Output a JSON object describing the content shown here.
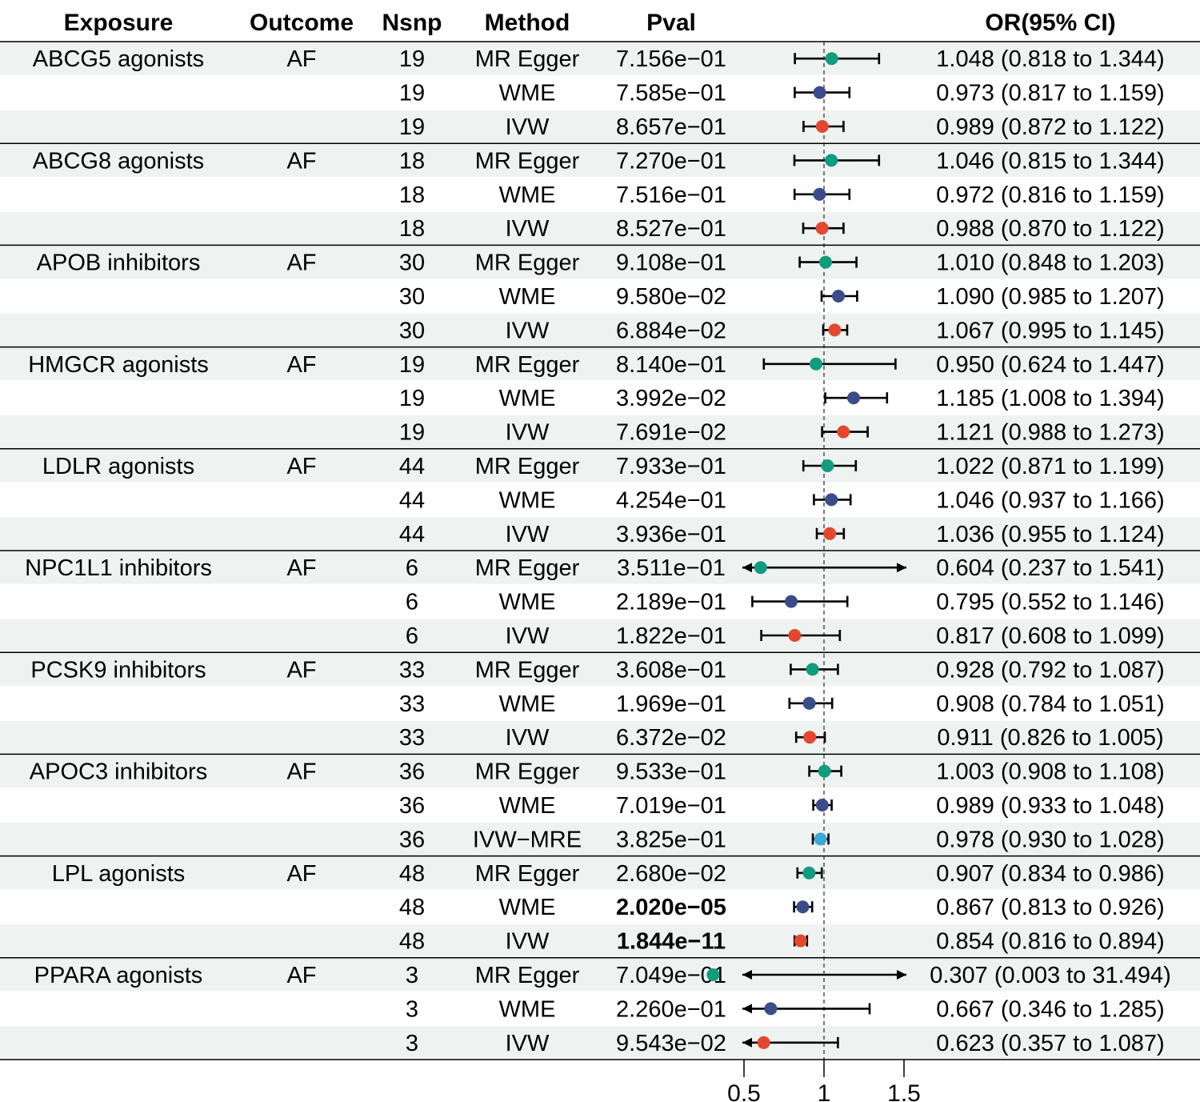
{
  "chart_data": {
    "type": "forest",
    "headers": {
      "exposure": "Exposure",
      "outcome": "Outcome",
      "nsnp": "Nsnp",
      "method": "Method",
      "pval": "Pval",
      "or": "OR(95% CI)"
    },
    "reference_line": 1,
    "x_axis": {
      "ticks": [
        0.5,
        1,
        1.5
      ],
      "tick_labels": [
        "0.5",
        "1",
        "1.5"
      ],
      "range": [
        0.5,
        1.5
      ]
    },
    "method_colors": {
      "MR Egger": "#119C7E",
      "WME": "#3A4C8A",
      "IVW": "#E4472F",
      "IVW−MRE": "#3FA9D6"
    },
    "groups": [
      {
        "exposure": "ABCG5 agonists",
        "outcome": "AF",
        "rows": [
          {
            "nsnp": "19",
            "method": "MR Egger",
            "pval": "7.156e−01",
            "bold": false,
            "or": 1.048,
            "lo": 0.818,
            "hi": 1.344,
            "or_text": "1.048 (0.818 to 1.344)"
          },
          {
            "nsnp": "19",
            "method": "WME",
            "pval": "7.585e−01",
            "bold": false,
            "or": 0.973,
            "lo": 0.817,
            "hi": 1.159,
            "or_text": "0.973 (0.817 to 1.159)"
          },
          {
            "nsnp": "19",
            "method": "IVW",
            "pval": "8.657e−01",
            "bold": false,
            "or": 0.989,
            "lo": 0.872,
            "hi": 1.122,
            "or_text": "0.989 (0.872 to 1.122)"
          }
        ]
      },
      {
        "exposure": "ABCG8 agonists",
        "outcome": "AF",
        "rows": [
          {
            "nsnp": "18",
            "method": "MR Egger",
            "pval": "7.270e−01",
            "bold": false,
            "or": 1.046,
            "lo": 0.815,
            "hi": 1.344,
            "or_text": "1.046 (0.815 to 1.344)"
          },
          {
            "nsnp": "18",
            "method": "WME",
            "pval": "7.516e−01",
            "bold": false,
            "or": 0.972,
            "lo": 0.816,
            "hi": 1.159,
            "or_text": "0.972 (0.816 to 1.159)"
          },
          {
            "nsnp": "18",
            "method": "IVW",
            "pval": "8.527e−01",
            "bold": false,
            "or": 0.988,
            "lo": 0.87,
            "hi": 1.122,
            "or_text": "0.988 (0.870 to 1.122)"
          }
        ]
      },
      {
        "exposure": "APOB inhibitors",
        "outcome": "AF",
        "rows": [
          {
            "nsnp": "30",
            "method": "MR Egger",
            "pval": "9.108e−01",
            "bold": false,
            "or": 1.01,
            "lo": 0.848,
            "hi": 1.203,
            "or_text": "1.010 (0.848 to 1.203)"
          },
          {
            "nsnp": "30",
            "method": "WME",
            "pval": "9.580e−02",
            "bold": false,
            "or": 1.09,
            "lo": 0.985,
            "hi": 1.207,
            "or_text": "1.090 (0.985 to 1.207)"
          },
          {
            "nsnp": "30",
            "method": "IVW",
            "pval": "6.884e−02",
            "bold": false,
            "or": 1.067,
            "lo": 0.995,
            "hi": 1.145,
            "or_text": "1.067 (0.995 to 1.145)"
          }
        ]
      },
      {
        "exposure": "HMGCR agonists",
        "outcome": "AF",
        "rows": [
          {
            "nsnp": "19",
            "method": "MR Egger",
            "pval": "8.140e−01",
            "bold": false,
            "or": 0.95,
            "lo": 0.624,
            "hi": 1.447,
            "or_text": "0.950 (0.624 to 1.447)"
          },
          {
            "nsnp": "19",
            "method": "WME",
            "pval": "3.992e−02",
            "bold": false,
            "or": 1.185,
            "lo": 1.008,
            "hi": 1.394,
            "or_text": "1.185 (1.008 to 1.394)"
          },
          {
            "nsnp": "19",
            "method": "IVW",
            "pval": "7.691e−02",
            "bold": false,
            "or": 1.121,
            "lo": 0.988,
            "hi": 1.273,
            "or_text": "1.121 (0.988 to 1.273)"
          }
        ]
      },
      {
        "exposure": "LDLR agonists",
        "outcome": "AF",
        "rows": [
          {
            "nsnp": "44",
            "method": "MR Egger",
            "pval": "7.933e−01",
            "bold": false,
            "or": 1.022,
            "lo": 0.871,
            "hi": 1.199,
            "or_text": "1.022 (0.871 to 1.199)"
          },
          {
            "nsnp": "44",
            "method": "WME",
            "pval": "4.254e−01",
            "bold": false,
            "or": 1.046,
            "lo": 0.937,
            "hi": 1.166,
            "or_text": "1.046 (0.937 to 1.166)"
          },
          {
            "nsnp": "44",
            "method": "IVW",
            "pval": "3.936e−01",
            "bold": false,
            "or": 1.036,
            "lo": 0.955,
            "hi": 1.124,
            "or_text": "1.036 (0.955 to 1.124)"
          }
        ]
      },
      {
        "exposure": "NPC1L1 inhibitors",
        "outcome": "AF",
        "rows": [
          {
            "nsnp": "6",
            "method": "MR Egger",
            "pval": "3.511e−01",
            "bold": false,
            "or": 0.604,
            "lo": 0.237,
            "hi": 1.541,
            "or_text": "0.604 (0.237 to 1.541)"
          },
          {
            "nsnp": "6",
            "method": "WME",
            "pval": "2.189e−01",
            "bold": false,
            "or": 0.795,
            "lo": 0.552,
            "hi": 1.146,
            "or_text": "0.795 (0.552 to 1.146)"
          },
          {
            "nsnp": "6",
            "method": "IVW",
            "pval": "1.822e−01",
            "bold": false,
            "or": 0.817,
            "lo": 0.608,
            "hi": 1.099,
            "or_text": "0.817 (0.608 to 1.099)"
          }
        ]
      },
      {
        "exposure": "PCSK9 inhibitors",
        "outcome": "AF",
        "rows": [
          {
            "nsnp": "33",
            "method": "MR Egger",
            "pval": "3.608e−01",
            "bold": false,
            "or": 0.928,
            "lo": 0.792,
            "hi": 1.087,
            "or_text": "0.928 (0.792 to 1.087)"
          },
          {
            "nsnp": "33",
            "method": "WME",
            "pval": "1.969e−01",
            "bold": false,
            "or": 0.908,
            "lo": 0.784,
            "hi": 1.051,
            "or_text": "0.908 (0.784 to 1.051)"
          },
          {
            "nsnp": "33",
            "method": "IVW",
            "pval": "6.372e−02",
            "bold": false,
            "or": 0.911,
            "lo": 0.826,
            "hi": 1.005,
            "or_text": "0.911 (0.826 to 1.005)"
          }
        ]
      },
      {
        "exposure": "APOC3 inhibitors",
        "outcome": "AF",
        "rows": [
          {
            "nsnp": "36",
            "method": "MR Egger",
            "pval": "9.533e−01",
            "bold": false,
            "or": 1.003,
            "lo": 0.908,
            "hi": 1.108,
            "or_text": "1.003 (0.908 to 1.108)"
          },
          {
            "nsnp": "36",
            "method": "WME",
            "pval": "7.019e−01",
            "bold": false,
            "or": 0.989,
            "lo": 0.933,
            "hi": 1.048,
            "or_text": "0.989 (0.933 to 1.048)"
          },
          {
            "nsnp": "36",
            "method": "IVW−MRE",
            "pval": "3.825e−01",
            "bold": false,
            "or": 0.978,
            "lo": 0.93,
            "hi": 1.028,
            "or_text": "0.978 (0.930 to 1.028)"
          }
        ]
      },
      {
        "exposure": "LPL agonists",
        "outcome": "AF",
        "rows": [
          {
            "nsnp": "48",
            "method": "MR Egger",
            "pval": "2.680e−02",
            "bold": false,
            "or": 0.907,
            "lo": 0.834,
            "hi": 0.986,
            "or_text": "0.907 (0.834 to 0.986)"
          },
          {
            "nsnp": "48",
            "method": "WME",
            "pval": "2.020e−05",
            "bold": true,
            "or": 0.867,
            "lo": 0.813,
            "hi": 0.926,
            "or_text": "0.867 (0.813 to 0.926)"
          },
          {
            "nsnp": "48",
            "method": "IVW",
            "pval": "1.844e−11",
            "bold": true,
            "or": 0.854,
            "lo": 0.816,
            "hi": 0.894,
            "or_text": "0.854 (0.816 to 0.894)"
          }
        ]
      },
      {
        "exposure": "PPARA agonists",
        "outcome": "AF",
        "rows": [
          {
            "nsnp": "3",
            "method": "MR Egger",
            "pval": "7.049e−01",
            "bold": false,
            "or": 0.307,
            "lo": 0.003,
            "hi": 31.494,
            "or_text": "0.307 (0.003 to 31.494)"
          },
          {
            "nsnp": "3",
            "method": "WME",
            "pval": "2.260e−01",
            "bold": false,
            "or": 0.667,
            "lo": 0.346,
            "hi": 1.285,
            "or_text": "0.667 (0.346 to 1.285)"
          },
          {
            "nsnp": "3",
            "method": "IVW",
            "pval": "9.543e−02",
            "bold": false,
            "or": 0.623,
            "lo": 0.357,
            "hi": 1.087,
            "or_text": "0.623 (0.357 to 1.087)"
          }
        ]
      }
    ]
  }
}
